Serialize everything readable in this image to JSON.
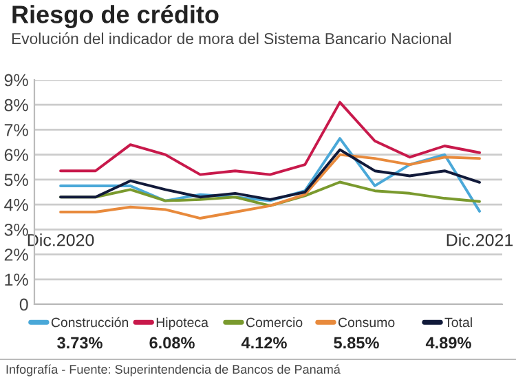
{
  "chart_data": {
    "type": "line",
    "title": "Riesgo de crédito",
    "subtitle": "Evolución del indicador de mora del Sistema Bancario Nacional",
    "categories": [
      "Dic.2020",
      null,
      null,
      null,
      null,
      null,
      null,
      null,
      null,
      null,
      null,
      null,
      "Dic.2021"
    ],
    "series": [
      {
        "name": "Construcción",
        "color": "#4aa8d8",
        "values": [
          4.75,
          4.75,
          4.75,
          4.15,
          4.4,
          4.3,
          4.15,
          4.55,
          6.65,
          4.75,
          5.6,
          6.0,
          3.73
        ]
      },
      {
        "name": "Hipoteca",
        "color": "#c8194b",
        "values": [
          5.35,
          5.35,
          6.4,
          6.0,
          5.2,
          5.35,
          5.2,
          5.6,
          8.1,
          6.55,
          5.9,
          6.35,
          6.08
        ]
      },
      {
        "name": "Comercio",
        "color": "#7a9a2e",
        "values": [
          4.3,
          4.3,
          4.6,
          4.15,
          4.2,
          4.3,
          3.95,
          4.35,
          4.9,
          4.55,
          4.45,
          4.25,
          4.12
        ]
      },
      {
        "name": "Consumo",
        "color": "#e88a3c",
        "values": [
          3.7,
          3.7,
          3.9,
          3.8,
          3.45,
          3.7,
          3.95,
          4.4,
          6.0,
          5.85,
          5.6,
          5.9,
          5.85
        ]
      },
      {
        "name": "Total",
        "color": "#111a3a",
        "values": [
          4.3,
          4.3,
          4.95,
          4.6,
          4.3,
          4.45,
          4.2,
          4.5,
          6.2,
          5.35,
          5.15,
          5.35,
          4.89
        ]
      }
    ],
    "ylim": [
      0,
      9
    ],
    "yticks": [
      {
        "value": 0,
        "label": "0"
      },
      {
        "value": 1,
        "label": "1%"
      },
      {
        "value": 2,
        "label": "2%"
      },
      {
        "value": 3,
        "label": "3%"
      },
      {
        "value": 4,
        "label": "4%"
      },
      {
        "value": 5,
        "label": "5%"
      },
      {
        "value": 6,
        "label": "6%"
      },
      {
        "value": 7,
        "label": "7%"
      },
      {
        "value": 8,
        "label": "8%"
      },
      {
        "value": 9,
        "label": "9%"
      }
    ],
    "grid": "y",
    "legend": "bottom",
    "marker": "none",
    "line_style": "solid",
    "annotations": [
      "3.73%",
      "6.08%",
      "4.12%",
      "5.85%",
      "4.89%",
      "Infografía - Fuente: Superintendencia de Bancos de Panamá"
    ]
  }
}
